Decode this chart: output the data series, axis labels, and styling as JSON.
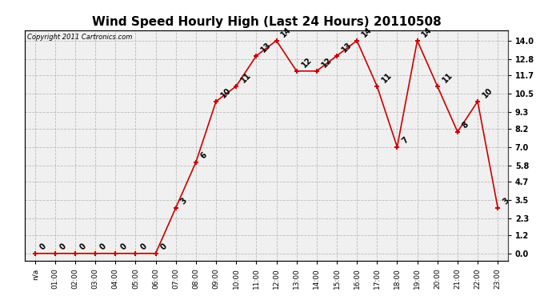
{
  "title": "Wind Speed Hourly High (Last 24 Hours) 20110508",
  "copyright": "Copyright 2011 Cartronics.com",
  "x_labels": [
    "n/a",
    "01:00",
    "02:00",
    "03:00",
    "04:00",
    "05:00",
    "06:00",
    "07:00",
    "08:00",
    "09:00",
    "10:00",
    "11:00",
    "12:00",
    "13:00",
    "14:00",
    "15:00",
    "16:00",
    "17:00",
    "18:00",
    "19:00",
    "20:00",
    "21:00",
    "22:00",
    "23:00"
  ],
  "y_values": [
    0,
    0,
    0,
    0,
    0,
    0,
    0,
    3,
    6,
    10,
    11,
    13,
    14,
    12,
    12,
    13,
    14,
    11,
    7,
    14,
    11,
    8,
    10,
    3
  ],
  "y_ticks": [
    0.0,
    1.2,
    2.3,
    3.5,
    4.7,
    5.8,
    7.0,
    8.2,
    9.3,
    10.5,
    11.7,
    12.8,
    14.0
  ],
  "line_color": "#cc0000",
  "marker_color": "#cc0000",
  "bg_color": "#ffffff",
  "plot_bg_color": "#f0f0f0",
  "grid_color": "#bbbbbb",
  "title_fontsize": 11,
  "label_fontsize": 6.5,
  "annotation_fontsize": 7,
  "copyright_fontsize": 6,
  "ylim_min": -0.5,
  "ylim_max": 14.7
}
